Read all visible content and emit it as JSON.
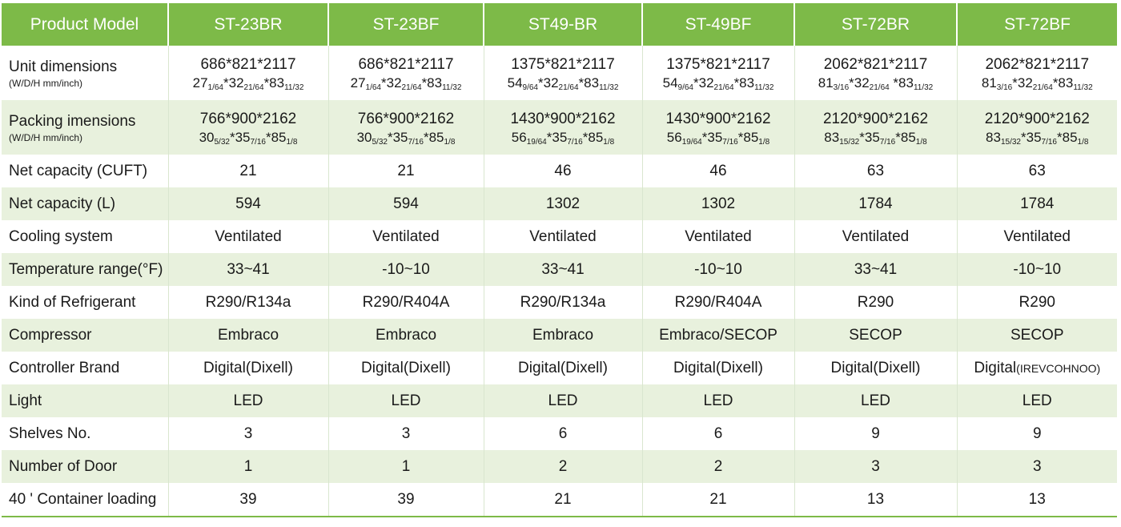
{
  "header": {
    "first": "Product Model",
    "models": [
      "ST-23BR",
      "ST-23BF",
      "ST49-BR",
      "ST-49BF",
      "ST-72BR",
      "ST-72BF"
    ]
  },
  "unit_dimensions": {
    "label": "Unit dimensions",
    "unit": "(W/D/H mm/inch)",
    "mm": [
      "686*821*2117",
      "686*821*2117",
      "1375*821*2117",
      "1375*821*2117",
      "2062*821*2117",
      "2062*821*2117"
    ],
    "inch": [
      [
        {
          "w": "27",
          "f": "1/64"
        },
        {
          "w": "*32",
          "f": "21/64"
        },
        {
          "w": "*83",
          "f": "11/32"
        }
      ],
      [
        {
          "w": "27",
          "f": "1/64"
        },
        {
          "w": "*32",
          "f": "21/64"
        },
        {
          "w": "*83",
          "f": "11/32"
        }
      ],
      [
        {
          "w": "54",
          "f": "9/64"
        },
        {
          "w": "*32",
          "f": "21/64"
        },
        {
          "w": "*83",
          "f": "11/32"
        }
      ],
      [
        {
          "w": "54",
          "f": "9/64"
        },
        {
          "w": "*32",
          "f": "21/64"
        },
        {
          "w": "*83",
          "f": "11/32"
        }
      ],
      [
        {
          "w": "81",
          "f": "3/16"
        },
        {
          "w": "*32",
          "f": "21/64"
        },
        {
          "w": " *83",
          "f": "11/32"
        }
      ],
      [
        {
          "w": "81",
          "f": "3/16"
        },
        {
          "w": "*32",
          "f": "21/64"
        },
        {
          "w": "*83",
          "f": "11/32"
        }
      ]
    ]
  },
  "packing_dimensions": {
    "label": "Packing imensions",
    "unit": "(W/D/H mm/inch)",
    "mm": [
      "766*900*2162",
      "766*900*2162",
      "1430*900*2162",
      "1430*900*2162",
      "2120*900*2162",
      "2120*900*2162"
    ],
    "inch": [
      [
        {
          "w": "30",
          "f": "5/32"
        },
        {
          "w": "*35",
          "f": "7/16"
        },
        {
          "w": "*85",
          "f": "1/8"
        }
      ],
      [
        {
          "w": "30",
          "f": "5/32"
        },
        {
          "w": "*35",
          "f": "7/16"
        },
        {
          "w": "*85",
          "f": "1/8"
        }
      ],
      [
        {
          "w": "56",
          "f": "19/64"
        },
        {
          "w": "*35",
          "f": "7/16"
        },
        {
          "w": "*85",
          "f": "1/8"
        }
      ],
      [
        {
          "w": "56",
          "f": "19/64"
        },
        {
          "w": "*35",
          "f": "7/16"
        },
        {
          "w": "*85",
          "f": "1/8"
        }
      ],
      [
        {
          "w": "83",
          "f": "15/32"
        },
        {
          "w": "*35",
          "f": "7/16"
        },
        {
          "w": "*85",
          "f": "1/8"
        }
      ],
      [
        {
          "w": "83",
          "f": "15/32"
        },
        {
          "w": "*35",
          "f": "7/16"
        },
        {
          "w": "*85",
          "f": "1/8"
        }
      ]
    ]
  },
  "rows": [
    {
      "label": "Net capacity (CUFT)",
      "values": [
        "21",
        "21",
        "46",
        "46",
        "63",
        "63"
      ]
    },
    {
      "label": "Net capacity (L)",
      "values": [
        "594",
        "594",
        "1302",
        "1302",
        "1784",
        "1784"
      ]
    },
    {
      "label": "Cooling system",
      "values": [
        "Ventilated",
        "Ventilated",
        "Ventilated",
        "Ventilated",
        "Ventilated",
        "Ventilated"
      ]
    },
    {
      "label": "Temperature range(°F)",
      "values": [
        "33~41",
        "-10~10",
        "33~41",
        "-10~10",
        "33~41",
        "-10~10"
      ]
    },
    {
      "label": "Kind of Refrigerant",
      "values": [
        "R290/R134a",
        "R290/R404A",
        "R290/R134a",
        "R290/R404A",
        "R290",
        "R290"
      ]
    },
    {
      "label": "Compressor",
      "values": [
        "Embraco",
        "Embraco",
        "Embraco",
        "Embraco/SECOP",
        "SECOP",
        "SECOP"
      ]
    },
    {
      "label": "Controller Brand",
      "values": [
        "Digital(Dixell)",
        "Digital(Dixell)",
        "Digital(Dixell)",
        "Digital(Dixell)",
        "Digital(Dixell)",
        "Digital"
      ],
      "last_suffix": "(IREVCOHNOO)"
    },
    {
      "label": "Light",
      "values": [
        "LED",
        "LED",
        "LED",
        "LED",
        "LED",
        "LED"
      ]
    },
    {
      "label": "Shelves No.",
      "values": [
        "3",
        "3",
        "6",
        "6",
        "9",
        "9"
      ]
    },
    {
      "label": "Number of Door",
      "values": [
        "1",
        "1",
        "2",
        "2",
        "3",
        "3"
      ]
    },
    {
      "label": "40 ' Container loading",
      "values": [
        "39",
        "39",
        "21",
        "21",
        "13",
        "13"
      ]
    }
  ],
  "colors": {
    "header_green": "#7dba48",
    "stripe_green": "#e8f1dd",
    "white": "#ffffff"
  }
}
